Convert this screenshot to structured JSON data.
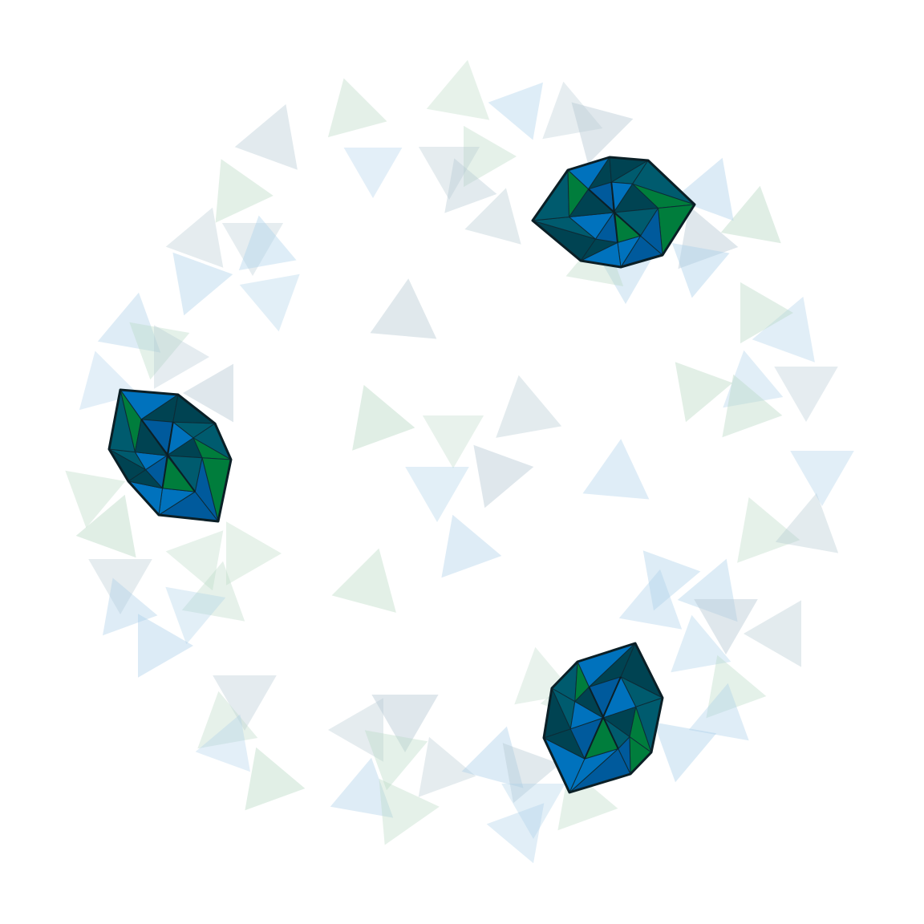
{
  "palette": {
    "background": "#ffffff",
    "blue": "#0072bd",
    "mid_blue": "#005a9c",
    "green": "#007d3c",
    "dark_teal": "#004352",
    "teal": "#005b6e",
    "outline": "#0b1f26",
    "ghost_blue": "#a9cfe9",
    "ghost_green": "#b9d9c4",
    "ghost_slate": "#b4c8d2"
  },
  "icons": [
    "triangle-shard-icon",
    "polyhedron-icon"
  ]
}
